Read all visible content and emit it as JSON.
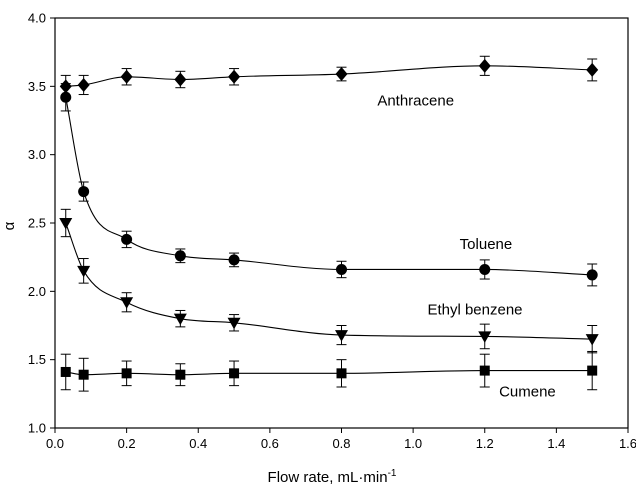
{
  "chart_data": {
    "type": "scatter",
    "title": "",
    "xlabel": "Flow rate, mL·min",
    "xlabel_superscript": "-1",
    "ylabel": "α",
    "xlim": [
      0.0,
      1.6
    ],
    "ylim": [
      1.0,
      4.0
    ],
    "x_ticks": [
      "0.0",
      "0.2",
      "0.4",
      "0.6",
      "0.8",
      "1.0",
      "1.2",
      "1.4",
      "1.6"
    ],
    "y_ticks": [
      "1.0",
      "1.5",
      "2.0",
      "2.5",
      "3.0",
      "3.5",
      "4.0"
    ],
    "grid": false,
    "legend": "none",
    "series": [
      {
        "name": "Anthracene",
        "marker": "diamond",
        "x": [
          0.03,
          0.08,
          0.2,
          0.35,
          0.5,
          0.8,
          1.2,
          1.5
        ],
        "y": [
          3.5,
          3.51,
          3.57,
          3.55,
          3.57,
          3.59,
          3.65,
          3.62
        ],
        "err": [
          0.08,
          0.07,
          0.06,
          0.06,
          0.06,
          0.05,
          0.07,
          0.08
        ]
      },
      {
        "name": "Toluene",
        "marker": "circle",
        "x": [
          0.03,
          0.08,
          0.2,
          0.35,
          0.5,
          0.8,
          1.2,
          1.5
        ],
        "y": [
          3.42,
          2.73,
          2.38,
          2.26,
          2.23,
          2.16,
          2.16,
          2.12
        ],
        "err": [
          0.1,
          0.07,
          0.06,
          0.05,
          0.05,
          0.06,
          0.07,
          0.08
        ]
      },
      {
        "name": "Ethyl benzene",
        "marker": "triangle-down",
        "x": [
          0.03,
          0.08,
          0.2,
          0.35,
          0.5,
          0.8,
          1.2,
          1.5
        ],
        "y": [
          2.5,
          2.15,
          1.92,
          1.8,
          1.77,
          1.68,
          1.67,
          1.65
        ],
        "err": [
          0.1,
          0.09,
          0.07,
          0.06,
          0.06,
          0.07,
          0.09,
          0.1
        ]
      },
      {
        "name": "Cumene",
        "marker": "square",
        "x": [
          0.03,
          0.08,
          0.2,
          0.35,
          0.5,
          0.8,
          1.2,
          1.5
        ],
        "y": [
          1.41,
          1.39,
          1.4,
          1.39,
          1.4,
          1.4,
          1.42,
          1.42
        ],
        "err": [
          0.13,
          0.12,
          0.09,
          0.08,
          0.09,
          0.1,
          0.12,
          0.14
        ]
      }
    ],
    "colors": {
      "marker": "#000000",
      "line": "#000000"
    }
  }
}
